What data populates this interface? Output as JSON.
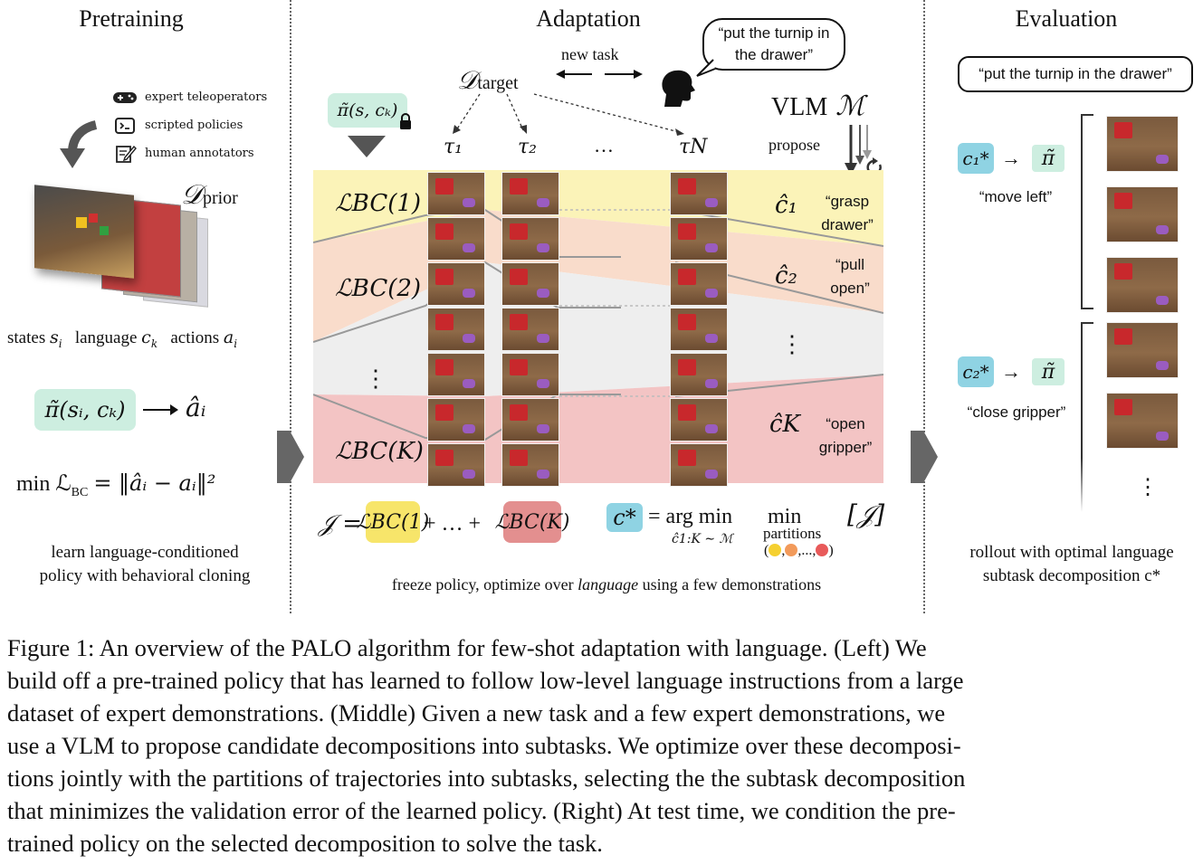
{
  "columns": {
    "pretraining": "Pretraining",
    "adaptation": "Adaptation",
    "evaluation": "Evaluation"
  },
  "pretraining": {
    "sources": [
      "expert teleoperators",
      "scripted policies",
      "human annotators"
    ],
    "source_icons": [
      "gamepad-icon",
      "terminal-icon",
      "annotate-icon"
    ],
    "dataset_symbol": "𝒟",
    "dataset_sub": "prior",
    "states_label": "states",
    "language_label": "language",
    "actions_label": "actions",
    "policy_expr": "π̃(sᵢ, cₖ)",
    "policy_output": "âᵢ",
    "loss_expr": "min ℒ",
    "loss_sub": "BC",
    "loss_rhs": "= ‖âᵢ − aᵢ‖²",
    "desc_line1": "learn language-conditioned",
    "desc_line2": "policy with behavioral cloning"
  },
  "adaptation": {
    "new_task": "new task",
    "dataset_symbol": "𝒟",
    "dataset_sub": "target",
    "speech": "“put the turnip in the drawer”",
    "frozen_policy": "π̃(s, cₖ)",
    "trajectories": [
      "τ₁",
      "τ₂",
      "…",
      "τN"
    ],
    "vlm_label": "VLM",
    "vlm_symbol": "ℳ",
    "propose": "propose",
    "losses": [
      "ℒBC(1)",
      "ℒBC(2)",
      "⋮",
      "ℒBC(K)"
    ],
    "subtask_symbols": [
      "ĉ₁",
      "ĉ₂",
      "⋮",
      "ĉK"
    ],
    "subtask_texts": [
      "“grasp drawer”",
      "“pull open”",
      "",
      "“open gripper”"
    ],
    "objective": "𝒥 = ℒBC(1) + … + ℒBC(K)",
    "objective_J": "𝒥 =",
    "objective_dots": "+ … +",
    "argmin_c": "c*",
    "argmin_text": "= arg min",
    "argmin_sub": "ĉ1:K ∼ ℳ",
    "min_text": "min",
    "partitions": "partitions",
    "bracket_J": "[𝒥]",
    "freeze_text_before": "freeze policy, optimize over ",
    "freeze_text_em": "language",
    "freeze_text_after": " using a few demonstrations",
    "band_colors": [
      "#fbf3b8",
      "#f9dccb",
      "#eeeeee",
      "#f3c4c4"
    ]
  },
  "evaluation": {
    "instruction": "“put the turnip in the drawer”",
    "steps": [
      {
        "symbol": "c₁*",
        "arrow": "→",
        "policy": "π̃",
        "text": "“move left”"
      },
      {
        "symbol": "c₂*",
        "arrow": "→",
        "policy": "π̃",
        "text": "“close gripper”"
      }
    ],
    "ellipsis": "⋮",
    "desc_line1": "rollout with optimal language",
    "desc_line2": "subtask decomposition c*"
  },
  "caption": [
    "Figure 1: An overview of the PALO algorithm for few-shot adaptation with language. (Left) We",
    "build off a pre-trained policy that has learned to follow low-level language instructions from a large",
    "dataset of expert demonstrations. (Middle) Given a new task and a few expert demonstrations, we",
    "use a VLM to propose candidate decompositions into subtasks. We optimize over these decomposi-",
    "tions jointly with the partitions of trajectories into subtasks, selecting the the subtask decomposition",
    "that minimizes the validation error of the learned policy. (Right) At test time, we condition the pre-",
    "trained policy on the selected decomposition to solve the task."
  ]
}
